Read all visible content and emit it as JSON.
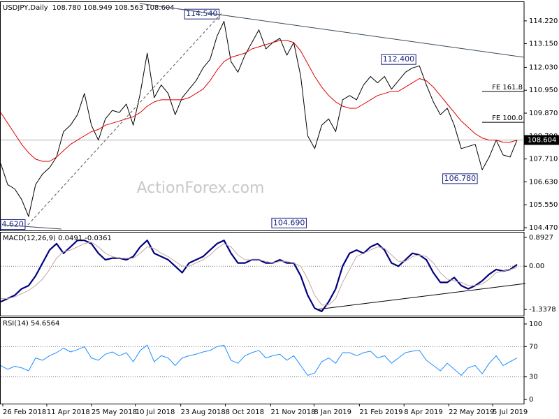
{
  "chart_data": [
    {
      "type": "line",
      "title": "USDJPY,Daily",
      "subtitle": "108.780 108.949 108.563 108.604",
      "watermark": "ActionForex.com",
      "x": [
        0,
        5,
        10,
        15,
        20,
        25,
        30,
        35,
        40,
        45,
        50,
        55,
        60,
        65,
        70,
        75,
        80,
        85,
        90,
        95,
        100,
        105,
        110,
        115,
        120,
        125,
        130,
        135,
        140,
        145,
        150,
        155,
        160,
        165,
        170,
        175,
        180,
        185,
        190,
        195,
        200,
        205,
        210,
        215,
        220,
        225,
        230,
        235,
        240,
        245,
        250,
        255,
        260,
        265,
        270,
        275,
        280,
        285,
        290,
        295,
        300,
        305,
        310,
        315,
        320,
        325,
        330,
        335,
        340,
        345,
        350,
        355,
        360,
        365,
        370
      ],
      "xlim": [
        0,
        375
      ],
      "ylim": [
        104.34,
        115.04
      ],
      "yticks": [
        {
          "value": 114.22,
          "label": "114.220"
        },
        {
          "value": 113.15,
          "label": "113.150"
        },
        {
          "value": 112.03,
          "label": "112.030"
        },
        {
          "value": 110.95,
          "label": "110.950"
        },
        {
          "value": 109.87,
          "label": "109.870"
        },
        {
          "value": 108.79,
          "label": "108.790"
        },
        {
          "value": 107.71,
          "label": "107.710"
        },
        {
          "value": 106.63,
          "label": "106.630"
        },
        {
          "value": 105.55,
          "label": "105.550"
        },
        {
          "value": 104.47,
          "label": "104.470"
        }
      ],
      "series": [
        {
          "color": "#000000",
          "width": 1,
          "values": [
            107.5,
            106.5,
            106.3,
            105.8,
            105.0,
            106.5,
            107.0,
            107.3,
            107.8,
            109.0,
            109.3,
            109.8,
            110.8,
            109.3,
            108.6,
            109.6,
            110.0,
            109.9,
            110.3,
            109.3,
            110.8,
            112.7,
            110.6,
            111.2,
            110.8,
            109.8,
            110.6,
            111.0,
            111.4,
            112.0,
            112.4,
            113.5,
            114.2,
            112.3,
            111.8,
            112.6,
            113.2,
            113.8,
            112.9,
            113.2,
            113.4,
            112.6,
            113.2,
            111.6,
            108.8,
            108.2,
            109.3,
            109.6,
            109.0,
            110.5,
            110.7,
            110.5,
            111.2,
            111.6,
            111.3,
            111.6,
            111.0,
            111.4,
            111.8,
            112.0,
            112.1,
            111.2,
            110.4,
            109.8,
            110.1,
            109.3,
            108.2,
            108.3,
            108.4,
            107.2,
            107.8,
            108.6,
            107.9,
            107.8,
            108.6
          ]
        },
        {
          "color": "#e00000",
          "width": 1,
          "values": [
            109.9,
            109.4,
            108.9,
            108.4,
            108.0,
            107.7,
            107.6,
            107.6,
            107.8,
            108.1,
            108.4,
            108.6,
            108.8,
            109.0,
            109.1,
            109.3,
            109.4,
            109.5,
            109.6,
            109.7,
            109.9,
            110.2,
            110.4,
            110.5,
            110.5,
            110.5,
            110.5,
            110.6,
            110.8,
            111.0,
            111.4,
            111.9,
            112.3,
            112.5,
            112.6,
            112.7,
            112.9,
            113.0,
            113.1,
            113.2,
            113.3,
            113.3,
            113.2,
            112.8,
            112.2,
            111.6,
            111.1,
            110.7,
            110.4,
            110.2,
            110.1,
            110.1,
            110.3,
            110.5,
            110.7,
            110.8,
            110.9,
            110.9,
            111.1,
            111.3,
            111.5,
            111.4,
            111.1,
            110.7,
            110.3,
            109.9,
            109.5,
            109.2,
            108.9,
            108.7,
            108.6,
            108.6,
            108.5,
            108.5,
            108.6
          ]
        }
      ],
      "last_value": 108.604,
      "annotations": [
        {
          "label": "114.540",
          "x": 159,
          "y": 114.54
        },
        {
          "label": "112.400",
          "x": 300,
          "y": 112.4
        },
        {
          "label": "106.780",
          "x": 344,
          "y": 106.78
        },
        {
          "label": "104.690",
          "x": 221.5,
          "y": 104.69
        },
        {
          "label": "4.620",
          "x": 20,
          "y": 104.62
        }
      ],
      "fe_levels": [
        {
          "label": "FE 161.8",
          "value": 110.89
        },
        {
          "label": "FE 100.0",
          "value": 109.44
        }
      ]
    },
    {
      "type": "line",
      "title": "MACD(12,26,9) 0.0491 -0.0361",
      "x": [
        0,
        5,
        10,
        15,
        20,
        25,
        30,
        35,
        40,
        45,
        50,
        55,
        60,
        65,
        70,
        75,
        80,
        85,
        90,
        95,
        100,
        105,
        110,
        115,
        120,
        125,
        130,
        135,
        140,
        145,
        150,
        155,
        160,
        165,
        170,
        175,
        180,
        185,
        190,
        195,
        200,
        205,
        210,
        215,
        220,
        225,
        230,
        235,
        240,
        245,
        250,
        255,
        260,
        265,
        270,
        275,
        280,
        285,
        290,
        295,
        300,
        305,
        310,
        315,
        320,
        325,
        330,
        335,
        340,
        345,
        350,
        355,
        360,
        365,
        370
      ],
      "xlim": [
        0,
        375
      ],
      "ylim": [
        -1.53,
        1.0
      ],
      "yticks": [
        0.8927,
        {
          "value": 0,
          "label": "0.00"
        },
        -1.3378
      ],
      "levels": [
        0
      ],
      "series": [
        {
          "color": "#000080",
          "width": 2.2,
          "values": [
            -1.1,
            -1.0,
            -0.9,
            -0.7,
            -0.6,
            -0.3,
            0.1,
            0.5,
            0.7,
            0.4,
            0.6,
            0.8,
            0.8,
            0.7,
            0.4,
            0.2,
            0.25,
            0.25,
            0.2,
            0.3,
            0.6,
            0.8,
            0.4,
            0.3,
            0.2,
            0.0,
            -0.2,
            0.1,
            0.2,
            0.3,
            0.5,
            0.7,
            0.8,
            0.4,
            0.1,
            0.1,
            0.2,
            0.2,
            0.1,
            0.1,
            0.2,
            0.1,
            0.1,
            -0.3,
            -0.9,
            -1.3,
            -1.4,
            -1.1,
            -0.7,
            0.0,
            0.4,
            0.5,
            0.4,
            0.6,
            0.7,
            0.5,
            0.1,
            0.0,
            0.2,
            0.4,
            0.35,
            0.2,
            -0.2,
            -0.5,
            -0.5,
            -0.35,
            -0.6,
            -0.7,
            -0.6,
            -0.45,
            -0.25,
            -0.1,
            -0.15,
            -0.1,
            0.05
          ]
        },
        {
          "color": "#c8a8a0",
          "width": 1,
          "values": [
            -1.0,
            -1.0,
            -0.95,
            -0.85,
            -0.75,
            -0.6,
            -0.4,
            -0.1,
            0.25,
            0.45,
            0.5,
            0.6,
            0.7,
            0.75,
            0.6,
            0.4,
            0.3,
            0.25,
            0.25,
            0.25,
            0.4,
            0.6,
            0.55,
            0.4,
            0.3,
            0.15,
            0.0,
            0.0,
            0.1,
            0.2,
            0.35,
            0.55,
            0.7,
            0.6,
            0.35,
            0.2,
            0.2,
            0.2,
            0.15,
            0.1,
            0.15,
            0.15,
            0.1,
            0.0,
            -0.4,
            -0.9,
            -1.2,
            -1.2,
            -1.0,
            -0.5,
            -0.1,
            0.3,
            0.4,
            0.5,
            0.6,
            0.55,
            0.35,
            0.15,
            0.15,
            0.3,
            0.35,
            0.3,
            0.1,
            -0.2,
            -0.4,
            -0.45,
            -0.5,
            -0.6,
            -0.6,
            -0.55,
            -0.4,
            -0.2,
            -0.15,
            -0.1,
            -0.04
          ]
        }
      ]
    },
    {
      "type": "line",
      "title": "RSI(14) 54.6564",
      "x": [
        0,
        5,
        10,
        15,
        20,
        25,
        30,
        35,
        40,
        45,
        50,
        55,
        60,
        65,
        70,
        75,
        80,
        85,
        90,
        95,
        100,
        105,
        110,
        115,
        120,
        125,
        130,
        135,
        140,
        145,
        150,
        155,
        160,
        165,
        170,
        175,
        180,
        185,
        190,
        195,
        200,
        205,
        210,
        215,
        220,
        225,
        230,
        235,
        240,
        245,
        250,
        255,
        260,
        265,
        270,
        275,
        280,
        285,
        290,
        295,
        300,
        305,
        310,
        315,
        320,
        325,
        330,
        335,
        340,
        345,
        350,
        355,
        360,
        365,
        370
      ],
      "xlim": [
        0,
        375
      ],
      "ylim": [
        -5.45,
        106.4
      ],
      "yticks": [
        100,
        70,
        30,
        0
      ],
      "levels": [
        70,
        30
      ],
      "xticks": [
        {
          "value": 1.5,
          "label": "26 Feb 2018"
        },
        {
          "value": 33,
          "label": "11 Apr 2018"
        },
        {
          "value": 65,
          "label": "25 May 2018"
        },
        {
          "value": 96.5,
          "label": "10 Jul 2018"
        },
        {
          "value": 129,
          "label": "23 Aug 2018"
        },
        {
          "value": 161,
          "label": "8 Oct 2018"
        },
        {
          "value": 193.5,
          "label": "21 Nov 2018"
        },
        {
          "value": 224.5,
          "label": "8 Jan 2019"
        },
        {
          "value": 257,
          "label": "21 Feb 2019"
        },
        {
          "value": 289,
          "label": "8 Apr 2019"
        },
        {
          "value": 321,
          "label": "22 May 2019"
        },
        {
          "value": 352.5,
          "label": "5 Jul 2019"
        }
      ],
      "series": [
        {
          "color": "#1e8fff",
          "width": 1,
          "values": [
            45,
            40,
            44,
            42,
            38,
            55,
            52,
            58,
            62,
            68,
            63,
            66,
            70,
            55,
            52,
            60,
            63,
            58,
            62,
            50,
            65,
            72,
            50,
            58,
            55,
            45,
            55,
            58,
            60,
            63,
            65,
            70,
            72,
            52,
            48,
            58,
            62,
            65,
            55,
            58,
            60,
            52,
            58,
            45,
            32,
            35,
            50,
            55,
            48,
            62,
            62,
            58,
            62,
            64,
            55,
            58,
            48,
            55,
            62,
            64,
            65,
            52,
            45,
            38,
            48,
            40,
            32,
            42,
            45,
            34,
            48,
            58,
            45,
            50,
            55
          ]
        }
      ]
    }
  ]
}
